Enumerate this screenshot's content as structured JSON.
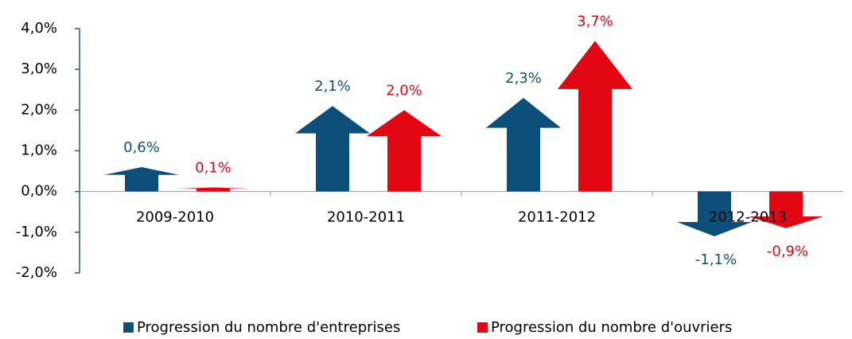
{
  "chart_data": {
    "type": "bar",
    "categories": [
      "2009-2010",
      "2010-2011",
      "2011-2012",
      "2012-2013"
    ],
    "series": [
      {
        "name": "Progression du nombre d'entreprises",
        "color": "#0b4f7a",
        "values": [
          0.6,
          2.1,
          2.3,
          -1.1
        ],
        "value_labels": [
          "0,6%",
          "2,1%",
          "2,3%",
          "-1,1%"
        ]
      },
      {
        "name": "Progression du nombre d'ouvriers",
        "color": "#e30613",
        "values": [
          0.1,
          2.0,
          3.7,
          -0.9
        ],
        "value_labels": [
          "0,1%",
          "2,0%",
          "3,7%",
          "-0,9%"
        ]
      }
    ],
    "ylim": [
      -2,
      4
    ],
    "yticks": [
      {
        "value": -2,
        "label": "-2,0%"
      },
      {
        "value": -1,
        "label": "-1,0%"
      },
      {
        "value": 0,
        "label": "0,0%"
      },
      {
        "value": 1,
        "label": "1,0%"
      },
      {
        "value": 2,
        "label": "2,0%"
      },
      {
        "value": 3,
        "label": "3,0%"
      },
      {
        "value": 4,
        "label": "4,0%"
      }
    ],
    "legend": "bottom"
  }
}
